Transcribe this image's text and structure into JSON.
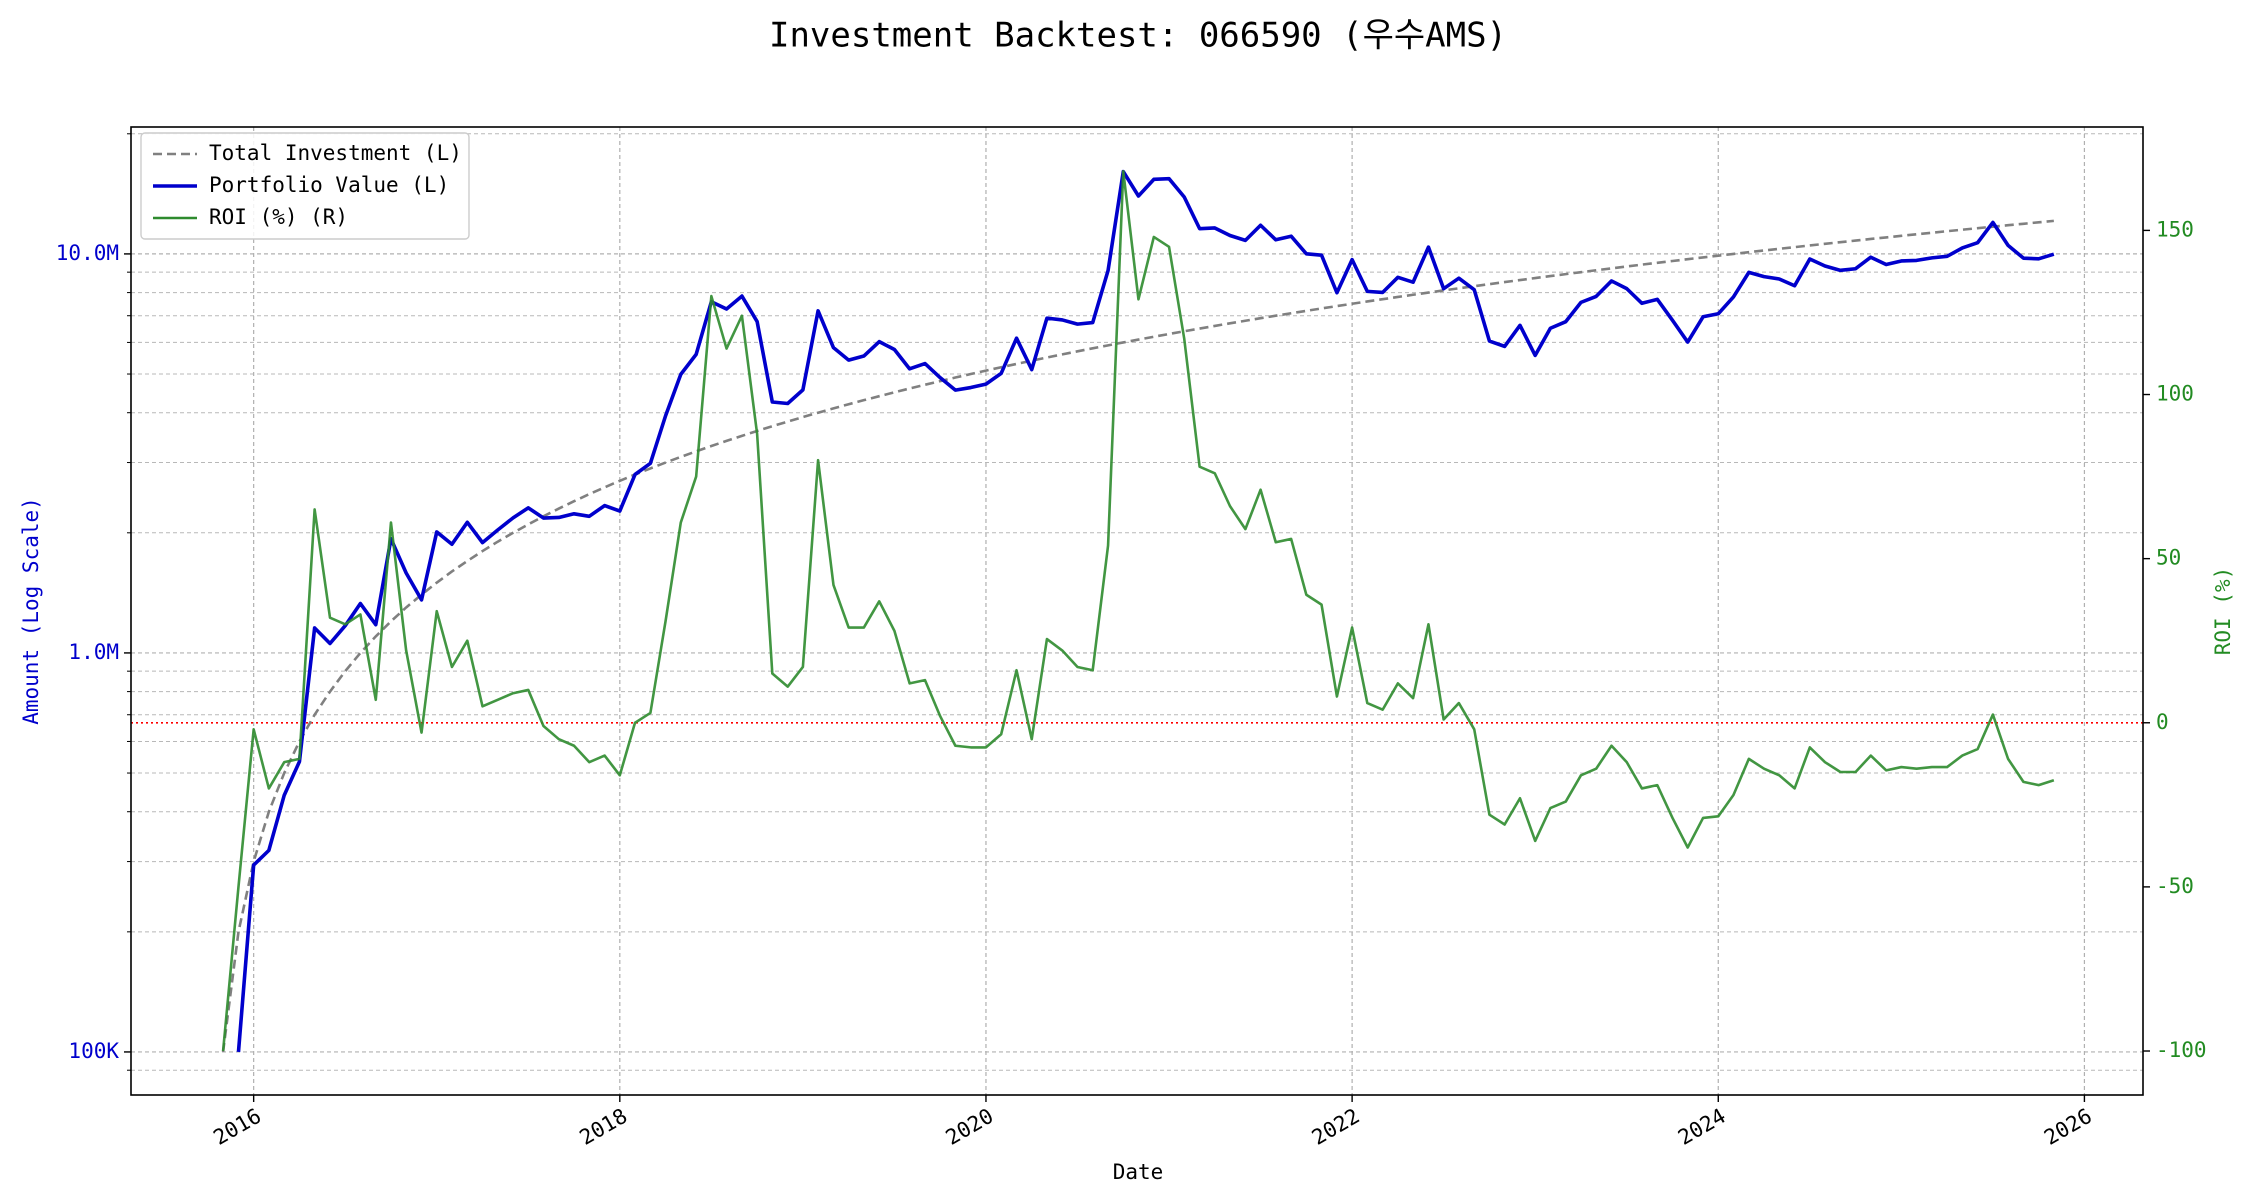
{
  "chart_data": {
    "type": "line",
    "title": "Investment Backtest: 066590 (우수AMS)",
    "xlabel": "Date",
    "ylabel": "Amount (Log Scale)",
    "y2label": "ROI (%)",
    "yscale": "log",
    "grid": true,
    "legend": "upper left",
    "xlim": [
      2015.33,
      2026.32
    ],
    "xticks": [
      2016,
      2018,
      2020,
      2022,
      2024,
      2026
    ],
    "ylim": [
      78000,
      20800000
    ],
    "yticks": [
      {
        "value": 100000,
        "label": "100K"
      },
      {
        "value": 1000000,
        "label": "1.0M"
      },
      {
        "value": 10000000,
        "label": "10.0M"
      }
    ],
    "yminorticks": [
      90000,
      200000,
      300000,
      400000,
      500000,
      600000,
      700000,
      800000,
      900000,
      2000000,
      3000000,
      4000000,
      5000000,
      6000000,
      7000000,
      8000000,
      9000000,
      20000000
    ],
    "y2lim": [
      -113.4,
      181.5
    ],
    "y2ticks": [
      -100,
      -50,
      0,
      50,
      100,
      150
    ],
    "reference_line": {
      "value": 0,
      "axis": "y2",
      "color": "#ff0000"
    },
    "x": [
      2015.833,
      2015.917,
      2016,
      2016.083,
      2016.167,
      2016.25,
      2016.333,
      2016.417,
      2016.5,
      2016.583,
      2016.667,
      2016.75,
      2016.833,
      2016.917,
      2017,
      2017.083,
      2017.167,
      2017.25,
      2017.333,
      2017.417,
      2017.5,
      2017.583,
      2017.667,
      2017.75,
      2017.833,
      2017.917,
      2018,
      2018.083,
      2018.167,
      2018.25,
      2018.333,
      2018.417,
      2018.5,
      2018.583,
      2018.667,
      2018.75,
      2018.833,
      2018.917,
      2019,
      2019.083,
      2019.167,
      2019.25,
      2019.333,
      2019.417,
      2019.5,
      2019.583,
      2019.667,
      2019.75,
      2019.833,
      2019.917,
      2020,
      2020.083,
      2020.167,
      2020.25,
      2020.333,
      2020.417,
      2020.5,
      2020.583,
      2020.667,
      2020.75,
      2020.833,
      2020.917,
      2021,
      2021.083,
      2021.167,
      2021.25,
      2021.333,
      2021.417,
      2021.5,
      2021.583,
      2021.667,
      2021.75,
      2021.833,
      2021.917,
      2022,
      2022.083,
      2022.167,
      2022.25,
      2022.333,
      2022.417,
      2022.5,
      2022.583,
      2022.667,
      2022.75,
      2022.833,
      2022.917,
      2023,
      2023.083,
      2023.167,
      2023.25,
      2023.333,
      2023.417,
      2023.5,
      2023.583,
      2023.667,
      2023.75,
      2023.833,
      2023.917,
      2024,
      2024.083,
      2024.167,
      2024.25,
      2024.333,
      2024.417,
      2024.5,
      2024.583,
      2024.667,
      2024.75,
      2024.833,
      2024.917,
      2025,
      2025.083,
      2025.167,
      2025.25,
      2025.333,
      2025.417,
      2025.5,
      2025.583,
      2025.667,
      2025.75,
      2025.833
    ],
    "series": [
      {
        "name": "Total Investment (L)",
        "color": "#808080",
        "dash": true,
        "axis": "y",
        "values": [
          100000,
          200000,
          300000,
          400000,
          500000,
          600000,
          700000,
          800000,
          900000,
          1000000,
          1100000,
          1200000,
          1300000,
          1400000,
          1500000,
          1600000,
          1700000,
          1800000,
          1900000,
          2000000,
          2100000,
          2200000,
          2300000,
          2400000,
          2500000,
          2600000,
          2700000,
          2800000,
          2900000,
          3000000,
          3100000,
          3200000,
          3300000,
          3400000,
          3500000,
          3600000,
          3700000,
          3800000,
          3900000,
          4000000,
          4100000,
          4200000,
          4300000,
          4400000,
          4500000,
          4600000,
          4700000,
          4800000,
          4900000,
          5000000,
          5100000,
          5200000,
          5300000,
          5400000,
          5500000,
          5600000,
          5700000,
          5800000,
          5900000,
          6000000,
          6100000,
          6200000,
          6300000,
          6400000,
          6500000,
          6600000,
          6700000,
          6800000,
          6900000,
          7000000,
          7100000,
          7200000,
          7300000,
          7400000,
          7500000,
          7600000,
          7700000,
          7800000,
          7900000,
          8000000,
          8100000,
          8200000,
          8300000,
          8400000,
          8500000,
          8600000,
          8700000,
          8800000,
          8900000,
          9000000,
          9100000,
          9200000,
          9300000,
          9400000,
          9500000,
          9600000,
          9700000,
          9800000,
          9900000,
          10000000,
          10100000,
          10200000,
          10300000,
          10400000,
          10500000,
          10600000,
          10700000,
          10800000,
          10900000,
          11000000,
          11100000,
          11200000,
          11300000,
          11400000,
          11500000,
          11600000,
          11700000,
          11800000,
          11900000,
          12000000,
          12100000
        ]
      },
      {
        "name": "Portfolio Value (L)",
        "color": "#0000cc",
        "dash": false,
        "axis": "y",
        "values": [
          null,
          100000,
          294000,
          320000,
          440000,
          534000,
          1155000,
          1056000,
          1170000,
          1330000,
          1177000,
          1932000,
          1586000,
          1358000,
          2010000,
          1872000,
          2125000,
          1890000,
          2033000,
          2180000,
          2310000,
          2178000,
          2185000,
          2232000,
          2200000,
          2340000,
          2268000,
          2800000,
          2987000,
          3930000,
          4991000,
          5600000,
          7590000,
          7276000,
          7840000,
          6768000,
          4255000,
          4218000,
          4563000,
          7200000,
          5822000,
          5418000,
          5547000,
          6028000,
          5760000,
          5152000,
          5311000,
          4896000,
          4557000,
          4625000,
          4718000,
          5018000,
          6148000,
          5130000,
          6903000,
          6832000,
          6669000,
          6728000,
          9086000,
          16080000,
          13969000,
          15376000,
          15435000,
          13888000,
          11570000,
          11616000,
          11122000,
          10812000,
          11799000,
          10850000,
          11076000,
          10008000,
          9928000,
          7992000,
          9675000,
          8056000,
          8008000,
          8736000,
          8493000,
          10400000,
          8181000,
          8692000,
          8134000,
          6048000,
          5865000,
          6622000,
          5568000,
          6512000,
          6764000,
          7560000,
          7826000,
          8556000,
          8184000,
          7520000,
          7695000,
          6816000,
          6014000,
          6958000,
          7079000,
          7800000,
          8989000,
          8772000,
          8652000,
          8320000,
          9713000,
          9328000,
          9095000,
          9180000,
          9810000,
          9405000,
          9602000,
          9632000,
          9775000,
          9861000,
          10350000,
          10672000,
          11993000,
          10502000,
          9758000,
          9720000,
          9983000
        ]
      },
      {
        "name": "ROI (%) (R)",
        "color": "#2e8b2e",
        "dash": false,
        "axis": "y2",
        "values": [
          -100,
          -50,
          -2,
          -20,
          -12,
          -11,
          65,
          32,
          30,
          33,
          7,
          61,
          22,
          -3,
          34,
          17,
          25,
          5,
          7,
          9,
          10,
          -1,
          -5,
          -7,
          -12,
          -10,
          -16,
          0,
          3,
          31,
          61,
          75,
          130,
          114,
          124,
          88,
          15,
          11,
          17,
          80,
          42,
          29,
          29,
          37,
          28,
          12,
          13,
          2,
          -7,
          -7.5,
          -7.5,
          -3.5,
          16,
          -5,
          25.5,
          22,
          17,
          16,
          54,
          168,
          129,
          148,
          145,
          117,
          78,
          76,
          66,
          59,
          71,
          55,
          56,
          39,
          36,
          8,
          29,
          6,
          4,
          12,
          7.5,
          30,
          1,
          6,
          -2,
          -28,
          -31,
          -23,
          -36,
          -26,
          -24,
          -16,
          -14,
          -7,
          -12,
          -20,
          -19,
          -29,
          -38,
          -29,
          -28.5,
          -22,
          -11,
          -14,
          -16,
          -20,
          -7.5,
          -12,
          -15,
          -15,
          -10,
          -14.5,
          -13.5,
          -14,
          -13.5,
          -13.5,
          -10,
          -8,
          2.5,
          -11,
          -18,
          -19,
          -17.5
        ]
      }
    ]
  }
}
